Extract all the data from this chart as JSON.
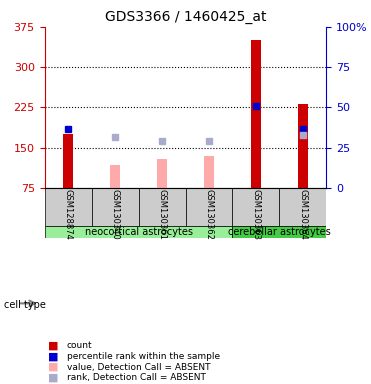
{
  "title": "GDS3366 / 1460425_at",
  "samples": [
    "GSM128874",
    "GSM130340",
    "GSM130361",
    "GSM130362",
    "GSM130363",
    "GSM130364"
  ],
  "cell_types": {
    "neocortical astrocytes": [
      0,
      1,
      2,
      3
    ],
    "cerebellar astrocytes": [
      4,
      5
    ]
  },
  "red_bars": [
    175,
    0,
    0,
    0,
    350,
    232
  ],
  "pink_bars": [
    0,
    118,
    128,
    135,
    0,
    0
  ],
  "blue_squares": [
    185,
    0,
    0,
    0,
    227,
    185
  ],
  "lavender_squares": [
    0,
    170,
    163,
    163,
    0,
    173
  ],
  "ylim_left": [
    75,
    375
  ],
  "ylim_right": [
    0,
    100
  ],
  "yticks_left": [
    75,
    150,
    225,
    300,
    375
  ],
  "yticks_right": [
    0,
    25,
    50,
    75,
    100
  ],
  "ytick_right_labels": [
    "0",
    "25",
    "50",
    "75",
    "100%"
  ],
  "red_color": "#cc0000",
  "pink_color": "#ffaaaa",
  "blue_color": "#0000cc",
  "lavender_color": "#aaaacc",
  "neocortical_color": "#99ee99",
  "cerebellar_color": "#44cc44",
  "bar_width": 0.35,
  "grid_color": "#000000",
  "bg_plot": "#ffffff",
  "bg_sample": "#cccccc",
  "left_tick_color": "#cc0000",
  "right_tick_color": "#0000cc"
}
